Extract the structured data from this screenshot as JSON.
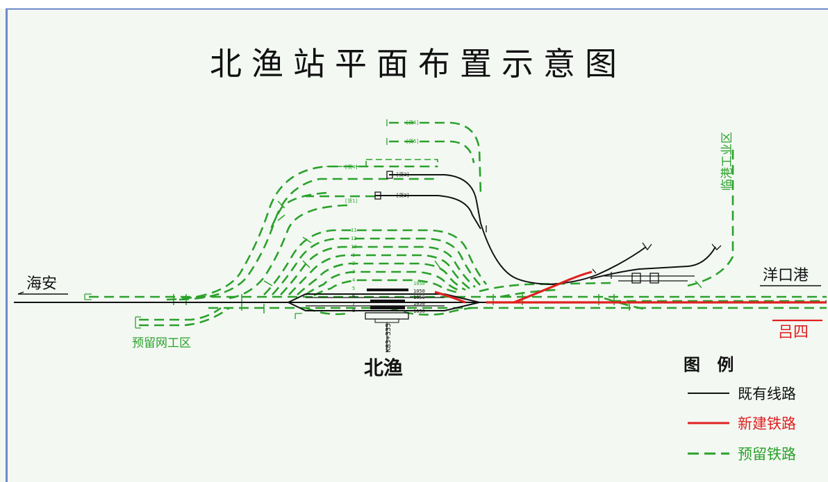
{
  "title": "北渔站平面布置示意图",
  "places": {
    "west": "海安",
    "east": "洋口港",
    "east_red": "吕四",
    "depot": "预留网工区",
    "industrial": "临港工业区",
    "station": "北渔",
    "mileage": "K83+335"
  },
  "track_numbers": [
    "11",
    "12",
    "13",
    "1",
    "2",
    "3",
    "4",
    "5",
    "6",
    "7",
    "8"
  ],
  "siding_labels": {
    "huo6": "[货6]",
    "huo5": "[货5]",
    "huo4": "[货4]",
    "huo3": "[货3]",
    "huo2": "[货2]",
    "huo1": "[货1]"
  },
  "platform_lengths": [
    "1050",
    "1050",
    "1050",
    "1050",
    "1050"
  ],
  "legend": {
    "title": "图 例",
    "items": [
      {
        "label": "既有线路",
        "color": "#111111"
      },
      {
        "label": "新建铁路",
        "color": "#e02020"
      },
      {
        "label": "预留铁路",
        "color": "#2aa12a"
      }
    ]
  },
  "colors": {
    "existing": "#111111",
    "new": "#e02020",
    "reserved": "#2aa12a",
    "frame": "#6f89c9",
    "background": "#f3f8f3"
  }
}
